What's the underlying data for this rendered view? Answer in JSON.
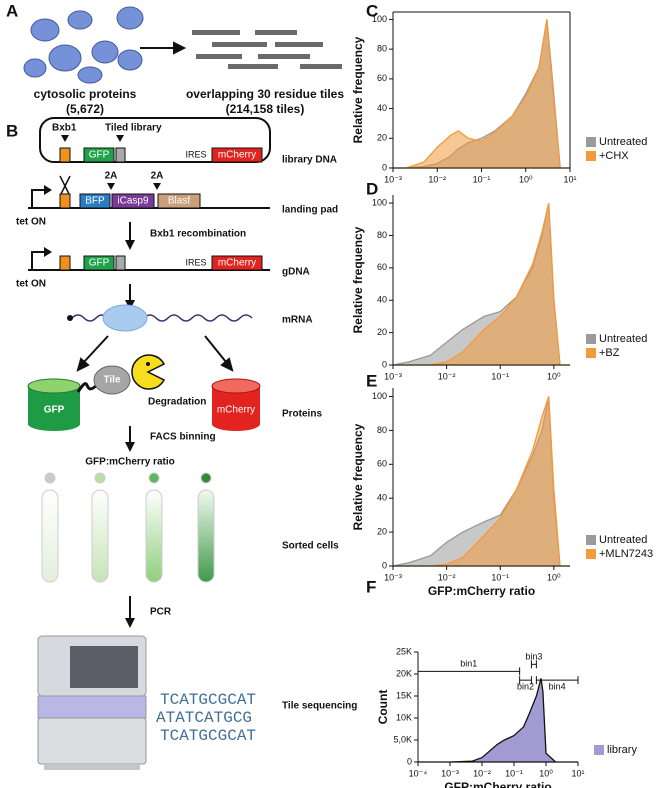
{
  "panel_labels": [
    "A",
    "B",
    "C",
    "D",
    "E",
    "F"
  ],
  "panel_a": {
    "left_title": "cytosolic proteins",
    "left_count": "(5,672)",
    "right_title": "overlapping 30 residue tiles",
    "right_count": "(214,158 tiles)"
  },
  "panel_b": {
    "bxb1": "Bxb1",
    "tiled_library": "Tiled library",
    "gfp": "GFP",
    "ires": "IRES",
    "mcherry": "mCherry",
    "library_dna": "library DNA",
    "tet_on": "tet ON",
    "two_a": "2A",
    "bfp": "BFP",
    "icasp9": "iCasp9",
    "blasf": "Blasf",
    "landing_pad": "landing pad",
    "recombination": "Bxb1 recombination",
    "gdna": "gDNA",
    "mrna": "mRNA",
    "tile": "Tile",
    "degradation": "Degradation",
    "proteins": "Proteins",
    "facs": "FACS binning",
    "ratio": "GFP:mCherry ratio",
    "sorted": "Sorted cells",
    "pcr": "PCR",
    "sequences": [
      "TCATGCGCAT",
      "ATATCATGCG",
      "TCATGCGCAT"
    ],
    "tile_sequencing": "Tile sequencing"
  },
  "chart_data": [
    {
      "type": "area",
      "xscale": "log",
      "frame": true,
      "ylabel": "Relative frequency",
      "legend": "lower right",
      "xlim": [
        0.001,
        10
      ],
      "xticks": [
        {
          "value": 0.001,
          "label": "10⁻³"
        },
        {
          "value": 0.01,
          "label": "10⁻²"
        },
        {
          "value": 0.1,
          "label": "10⁻¹"
        },
        {
          "value": 1,
          "label": "10⁰"
        },
        {
          "value": 10,
          "label": "10¹"
        }
      ],
      "ylim": [
        0,
        105
      ],
      "yticks": [
        0,
        20,
        40,
        60,
        80,
        100
      ],
      "x": [
        0.001,
        0.002,
        0.005,
        0.01,
        0.02,
        0.03,
        0.05,
        0.1,
        0.2,
        0.5,
        1,
        2,
        3,
        4,
        6,
        10
      ],
      "series": [
        {
          "name": "Untreated",
          "color": "#9a9a9a",
          "values": [
            0,
            0,
            1,
            3,
            8,
            13,
            17,
            20,
            25,
            35,
            50,
            68,
            100,
            60,
            0,
            0
          ]
        },
        {
          "name": "+CHX",
          "color": "#f39a3c",
          "values": [
            0,
            0,
            4,
            14,
            22,
            25,
            20,
            18,
            24,
            35,
            48,
            68,
            100,
            55,
            0,
            0
          ]
        }
      ]
    },
    {
      "type": "area",
      "xscale": "log",
      "frame": false,
      "ylabel": "Relative frequency",
      "legend": "lower right",
      "xlim": [
        0.001,
        2
      ],
      "xticks": [
        {
          "value": 0.001,
          "label": "10⁻³"
        },
        {
          "value": 0.01,
          "label": "10⁻²"
        },
        {
          "value": 0.1,
          "label": "10⁻¹"
        },
        {
          "value": 1,
          "label": "10⁰"
        }
      ],
      "ylim": [
        0,
        105
      ],
      "yticks": [
        0,
        20,
        40,
        60,
        80,
        100
      ],
      "x": [
        0.001,
        0.002,
        0.005,
        0.01,
        0.02,
        0.05,
        0.1,
        0.2,
        0.4,
        0.6,
        0.8,
        1,
        1.3,
        2
      ],
      "series": [
        {
          "name": "Untreated",
          "color": "#9a9a9a",
          "values": [
            0,
            2,
            6,
            14,
            22,
            30,
            33,
            42,
            60,
            80,
            100,
            40,
            0,
            0
          ]
        },
        {
          "name": "+BZ",
          "color": "#f39a3c",
          "values": [
            0,
            0,
            0,
            2,
            8,
            22,
            30,
            42,
            62,
            82,
            100,
            40,
            0,
            0
          ]
        }
      ]
    },
    {
      "type": "area",
      "xscale": "log",
      "frame": false,
      "ylabel": "Relative frequency",
      "xlabel": "GFP:mCherry ratio",
      "legend": "lower right",
      "xlim": [
        0.001,
        2
      ],
      "xticks": [
        {
          "value": 0.001,
          "label": "10⁻³"
        },
        {
          "value": 0.01,
          "label": "10⁻²"
        },
        {
          "value": 0.1,
          "label": "10⁻¹"
        },
        {
          "value": 1,
          "label": "10⁰"
        }
      ],
      "ylim": [
        0,
        105
      ],
      "yticks": [
        0,
        20,
        40,
        60,
        80,
        100
      ],
      "x": [
        0.001,
        0.002,
        0.005,
        0.01,
        0.02,
        0.05,
        0.1,
        0.2,
        0.4,
        0.6,
        0.8,
        1,
        1.3,
        2
      ],
      "series": [
        {
          "name": "Untreated",
          "color": "#9a9a9a",
          "values": [
            0,
            2,
            6,
            14,
            20,
            26,
            30,
            45,
            65,
            80,
            100,
            40,
            0,
            0
          ]
        },
        {
          "name": "+MLN7243",
          "color": "#f39a3c",
          "values": [
            0,
            0,
            0,
            1,
            5,
            18,
            28,
            45,
            68,
            88,
            100,
            45,
            0,
            0
          ]
        }
      ]
    },
    {
      "type": "area",
      "xscale": "log",
      "frame": false,
      "ylabel": "Count",
      "xlabel": "GFP:mCherry ratio",
      "legend": "lower right",
      "xlim": [
        0.0001,
        10
      ],
      "xticks": [
        {
          "value": 0.0001,
          "label": "10⁻⁴"
        },
        {
          "value": 0.001,
          "label": "10⁻³"
        },
        {
          "value": 0.01,
          "label": "10⁻²"
        },
        {
          "value": 0.1,
          "label": "10⁻¹"
        },
        {
          "value": 1,
          "label": "10⁰"
        },
        {
          "value": 10,
          "label": "10¹"
        }
      ],
      "ylim": [
        0,
        25000
      ],
      "yticks": [
        0,
        {
          "value": 5000,
          "label": "5,0K"
        },
        {
          "value": 10000,
          "label": "10K"
        },
        {
          "value": 15000,
          "label": "15K"
        },
        {
          "value": 20000,
          "label": "20K"
        },
        {
          "value": 25000,
          "label": "25K"
        }
      ],
      "x": [
        0.0001,
        0.001,
        0.005,
        0.01,
        0.03,
        0.05,
        0.1,
        0.2,
        0.3,
        0.5,
        0.7,
        0.8,
        1,
        2,
        10
      ],
      "series": [
        {
          "name": "library",
          "color": "#a29bd3",
          "values": [
            0,
            0,
            200,
            1000,
            4000,
            5000,
            6000,
            8000,
            11000,
            15000,
            19000,
            16000,
            2000,
            0,
            0
          ]
        }
      ],
      "bins": [
        {
          "label": "bin1",
          "range": [
            0.0001,
            0.15
          ]
        },
        {
          "label": "bin2",
          "range": [
            0.15,
            0.35
          ]
        },
        {
          "label": "bin3",
          "range": [
            0.35,
            0.5
          ]
        },
        {
          "label": "bin4",
          "range": [
            0.5,
            10
          ]
        }
      ]
    }
  ]
}
